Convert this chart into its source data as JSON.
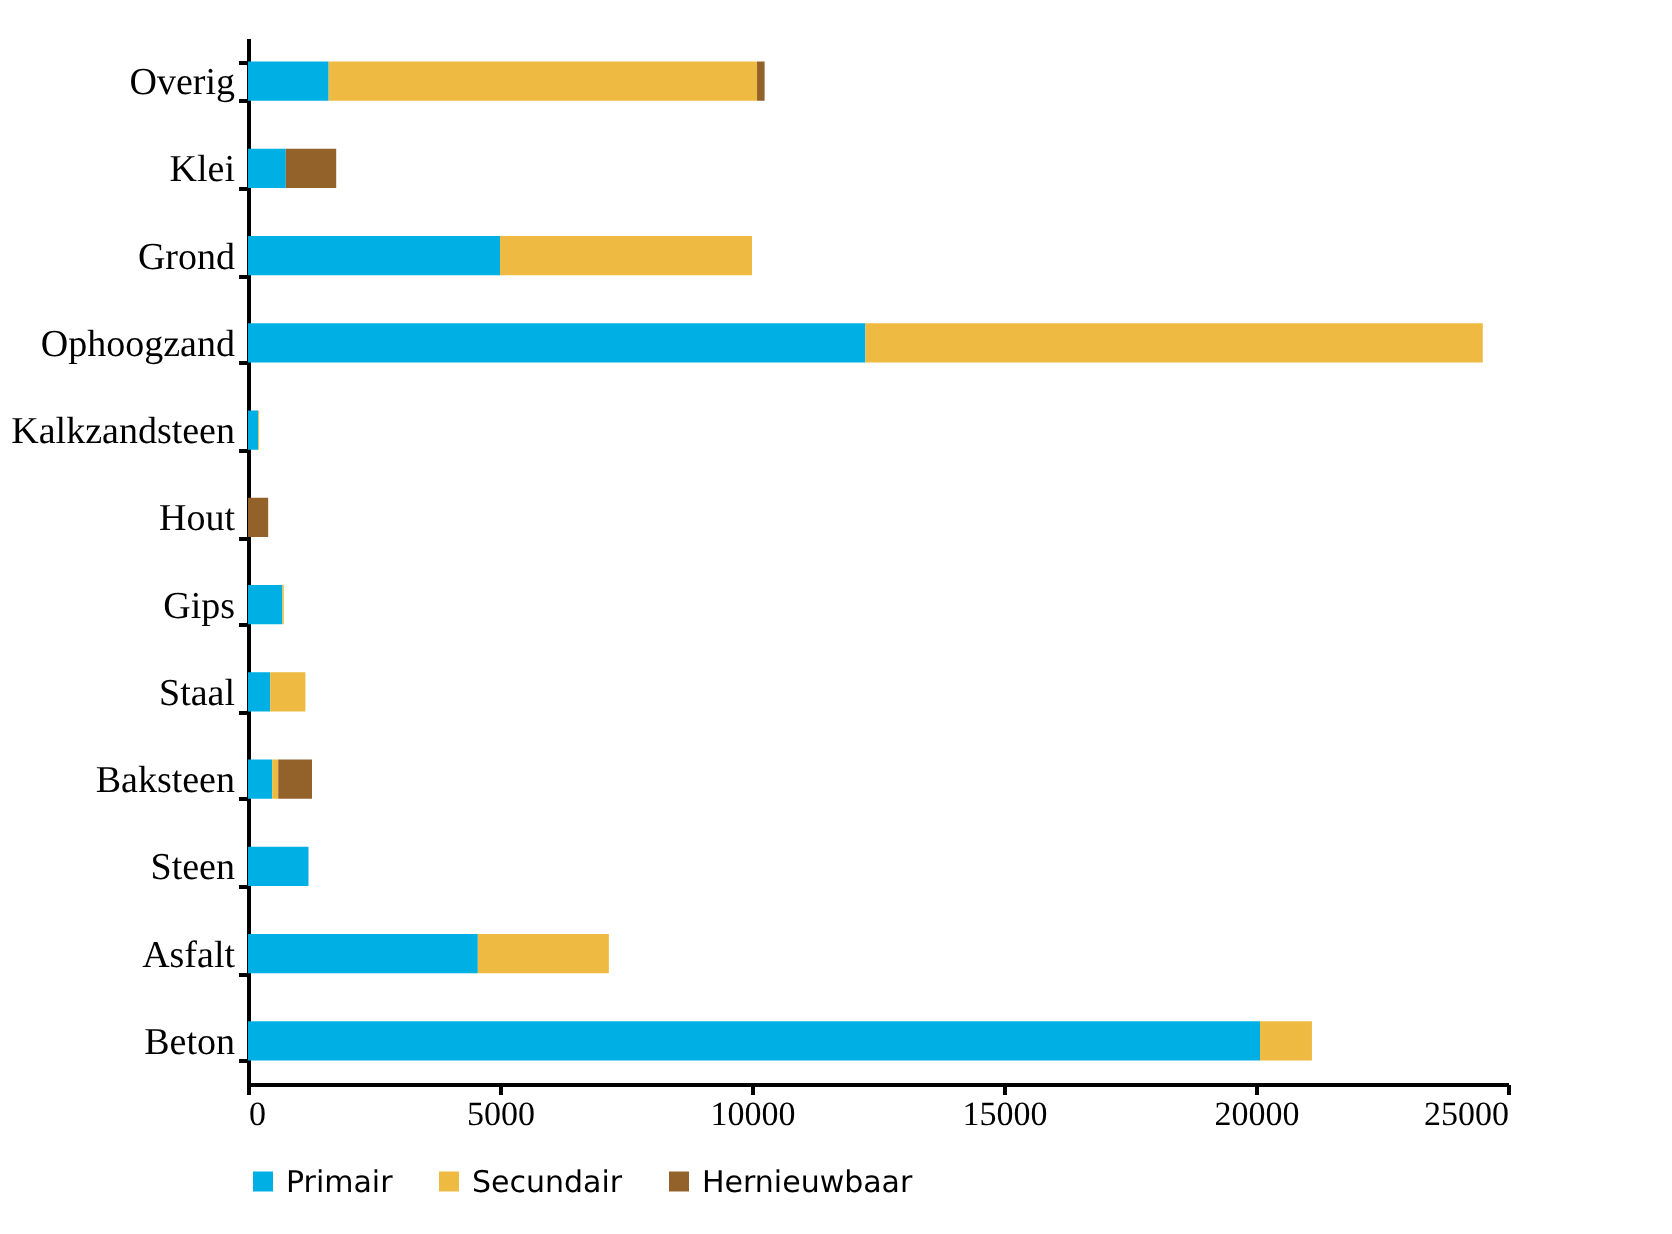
{
  "chart_data": {
    "type": "bar",
    "orientation": "horizontal",
    "stacked": true,
    "categories": [
      "Overig",
      "Klei",
      "Grond",
      "Ophoogzand",
      "Kalkzandsteen",
      "Hout",
      "Gips",
      "Staal",
      "Baksteen",
      "Steen",
      "Asfalt",
      "Beton"
    ],
    "series": [
      {
        "name": "Primair",
        "color": "#00b0e4",
        "values": [
          1600,
          750,
          5000,
          12250,
          200,
          0,
          680,
          440,
          480,
          1200,
          4560,
          20080
        ]
      },
      {
        "name": "Secundair",
        "color": "#eeba41",
        "values": [
          8500,
          0,
          5000,
          12250,
          20,
          0,
          30,
          700,
          120,
          0,
          2600,
          1030
        ]
      },
      {
        "name": "Hernieuwbaar",
        "color": "#93622b",
        "values": [
          150,
          1000,
          0,
          0,
          0,
          400,
          0,
          0,
          670,
          0,
          0,
          0
        ]
      }
    ],
    "xlim": [
      0,
      25000
    ],
    "xticks": [
      0,
      5000,
      10000,
      15000,
      20000,
      25000
    ],
    "grid": false,
    "legend": "bottom"
  }
}
